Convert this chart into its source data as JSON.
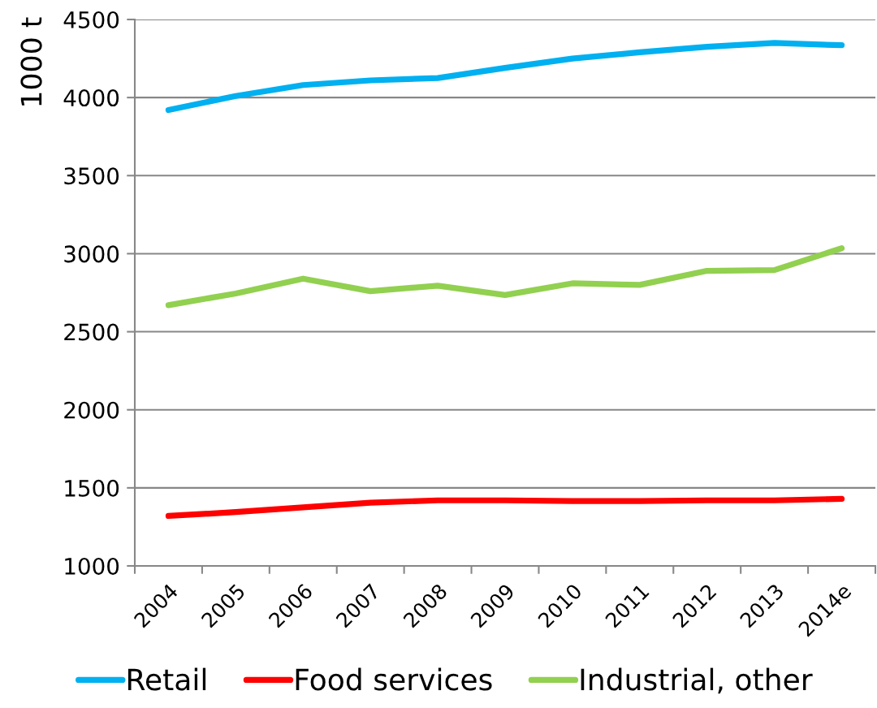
{
  "chart_data": {
    "type": "line",
    "ylabel": "1000 t",
    "categories": [
      "2004",
      "2005",
      "2006",
      "2007",
      "2008",
      "2009",
      "2010",
      "2011",
      "2012",
      "2013",
      "2014e"
    ],
    "series": [
      {
        "name": "Retail",
        "color": "#00b0f0",
        "values": [
          3920,
          4010,
          4080,
          4110,
          4125,
          4190,
          4250,
          4290,
          4325,
          4350,
          4335
        ]
      },
      {
        "name": "Food services",
        "color": "#ff0000",
        "values": [
          1320,
          1345,
          1375,
          1405,
          1420,
          1420,
          1415,
          1415,
          1420,
          1420,
          1430
        ]
      },
      {
        "name": "Industrial, other",
        "color": "#92d050",
        "values": [
          2670,
          2745,
          2840,
          2760,
          2795,
          2735,
          2810,
          2800,
          2890,
          2895,
          3035
        ]
      }
    ],
    "ylim": [
      1000,
      4500
    ],
    "yticks": [
      1000,
      1500,
      2000,
      2500,
      3000,
      3500,
      4000,
      4500
    ],
    "grid": "y",
    "legend": "bottom",
    "marker": "none",
    "line_style": "solid"
  }
}
